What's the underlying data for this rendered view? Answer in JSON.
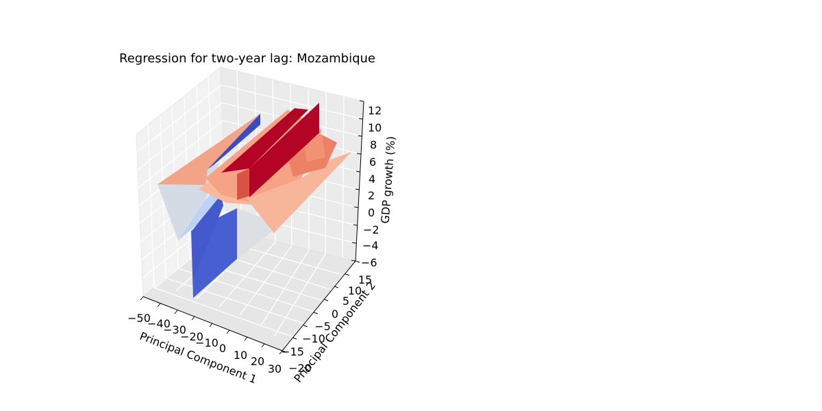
{
  "chart_data": {
    "type": "surface-3d",
    "title": "Regression for two-year lag: Mozambique",
    "xlabel": "Principal Component 1",
    "ylabel": "Principal Component 2",
    "zlabel": "GDP growth (%)",
    "x_ticks": [
      "−50",
      "−40",
      "−30",
      "−20",
      "−10",
      "0",
      "10",
      "20",
      "30"
    ],
    "y_ticks": [
      "−20",
      "−15",
      "−10",
      "−5",
      "0",
      "5",
      "10",
      "15"
    ],
    "z_ticks": [
      "−6",
      "−4",
      "−2",
      "0",
      "2",
      "4",
      "6",
      "8",
      "10",
      "12"
    ],
    "xlim": [
      -50,
      30
    ],
    "ylim": [
      -20,
      15
    ],
    "zlim": [
      -6,
      12
    ],
    "colormap": "coolwarm",
    "colors": {
      "low": "#3b4cc0",
      "mid": "#dddddd",
      "high": "#b40426"
    },
    "grid": true
  }
}
